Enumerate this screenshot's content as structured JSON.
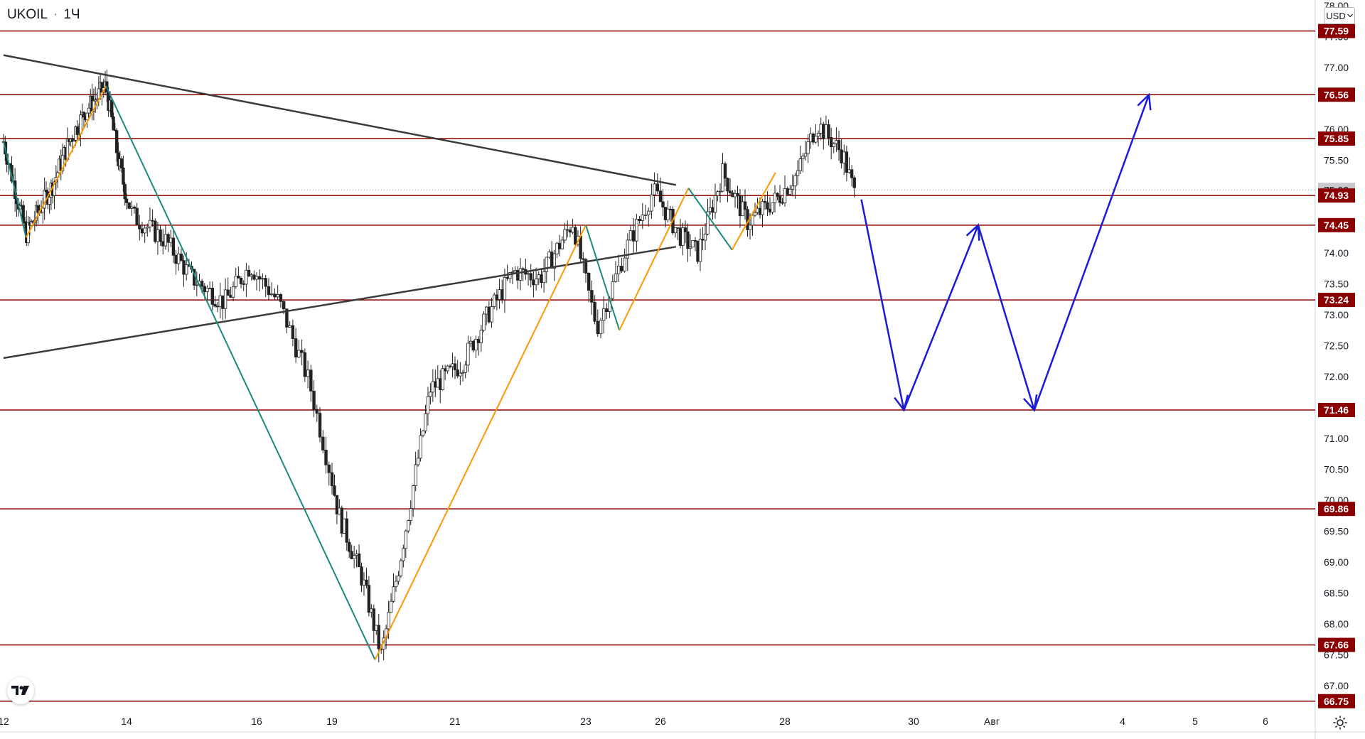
{
  "header": {
    "symbol": "UKOIL",
    "interval": "1Ч",
    "dot": "·"
  },
  "currency": {
    "label": "USD",
    "icon": "chevron-down-icon"
  },
  "colors": {
    "level_line": "#8b0000",
    "level_badge": "#8b0000",
    "current_badge": "#c8c9cc",
    "candle": "#222222",
    "trend_line": "#3b3b3b",
    "zigzag_down": "#1a8a7a",
    "zigzag_up": "#ff9800",
    "forecast": "#1a1ad8",
    "axis_text": "#131722",
    "grid_border": "#d1d4dc"
  },
  "chart_data": {
    "type": "candlestick",
    "symbol": "UKOIL",
    "interval": "1Ч",
    "ylim": [
      66.5,
      78.0
    ],
    "y_ticks": [
      "67.00",
      "67.50",
      "68.00",
      "68.50",
      "69.00",
      "69.50",
      "70.00",
      "70.50",
      "71.00",
      "71.50",
      "72.00",
      "72.50",
      "73.00",
      "73.50",
      "74.00",
      "74.50",
      "75.00",
      "75.50",
      "76.00",
      "77.00",
      "77.50",
      "78.00"
    ],
    "x_ticks": [
      {
        "label": "12",
        "x": 0
      },
      {
        "label": "14",
        "x": 3
      },
      {
        "label": "16",
        "x": 5
      },
      {
        "label": "19",
        "x": 6
      },
      {
        "label": "21",
        "x": 8
      },
      {
        "label": "23",
        "x": 10
      },
      {
        "label": "26",
        "x": 11
      },
      {
        "label": "28",
        "x": 13
      },
      {
        "label": "30",
        "x": 15
      },
      {
        "label": "Авг",
        "x": 16.15
      },
      {
        "label": "4",
        "x": 18.15
      },
      {
        "label": "5",
        "x": 19.25
      },
      {
        "label": "6",
        "x": 20.35
      }
    ],
    "x_range": [
      0,
      20.35
    ],
    "horizontal_levels": [
      "77.59",
      "76.56",
      "75.85",
      "74.93",
      "74.45",
      "73.24",
      "71.46",
      "69.86",
      "67.66",
      "66.75"
    ],
    "current_price": "75.02",
    "price_path": [
      [
        0.0,
        75.8
      ],
      [
        0.55,
        74.3
      ],
      [
        1.2,
        75.1
      ],
      [
        1.6,
        75.8
      ],
      [
        2.0,
        76.3
      ],
      [
        2.5,
        76.7
      ],
      [
        2.8,
        75.5
      ],
      [
        3.1,
        74.6
      ],
      [
        3.6,
        74.2
      ],
      [
        4.0,
        73.6
      ],
      [
        4.5,
        73.2
      ],
      [
        4.9,
        73.8
      ],
      [
        5.3,
        73.2
      ],
      [
        5.7,
        71.9
      ],
      [
        6.1,
        69.8
      ],
      [
        6.5,
        68.7
      ],
      [
        6.8,
        67.5
      ],
      [
        7.1,
        69.0
      ],
      [
        7.6,
        71.8
      ],
      [
        8.1,
        72.2
      ],
      [
        8.5,
        73.0
      ],
      [
        8.9,
        73.7
      ],
      [
        9.3,
        73.6
      ],
      [
        9.8,
        74.5
      ],
      [
        10.15,
        72.8
      ],
      [
        10.55,
        74.1
      ],
      [
        10.9,
        75.0
      ],
      [
        11.3,
        74.3
      ],
      [
        11.6,
        74.0
      ],
      [
        12.0,
        75.3
      ],
      [
        12.4,
        74.5
      ],
      [
        12.9,
        74.9
      ],
      [
        13.2,
        75.3
      ],
      [
        13.5,
        76.1
      ],
      [
        13.9,
        75.6
      ],
      [
        14.1,
        74.9
      ]
    ],
    "zigzag": [
      [
        0.0,
        75.8
      ],
      [
        0.55,
        74.25
      ],
      [
        2.5,
        76.7
      ],
      [
        6.7,
        67.42
      ],
      [
        10.0,
        74.45
      ],
      [
        10.45,
        72.75
      ],
      [
        11.45,
        75.05
      ],
      [
        12.15,
        74.05
      ],
      [
        12.85,
        75.3
      ]
    ],
    "trend_lines": [
      {
        "from": [
          0.0,
          77.2
        ],
        "to": [
          11.25,
          75.1
        ]
      },
      {
        "from": [
          0.0,
          72.3
        ],
        "to": [
          11.25,
          74.1
        ]
      }
    ],
    "forecast_path": [
      [
        14.1,
        74.9
      ],
      [
        14.85,
        71.46
      ],
      [
        15.95,
        74.45
      ],
      [
        16.8,
        71.46
      ],
      [
        18.55,
        76.56
      ]
    ]
  }
}
